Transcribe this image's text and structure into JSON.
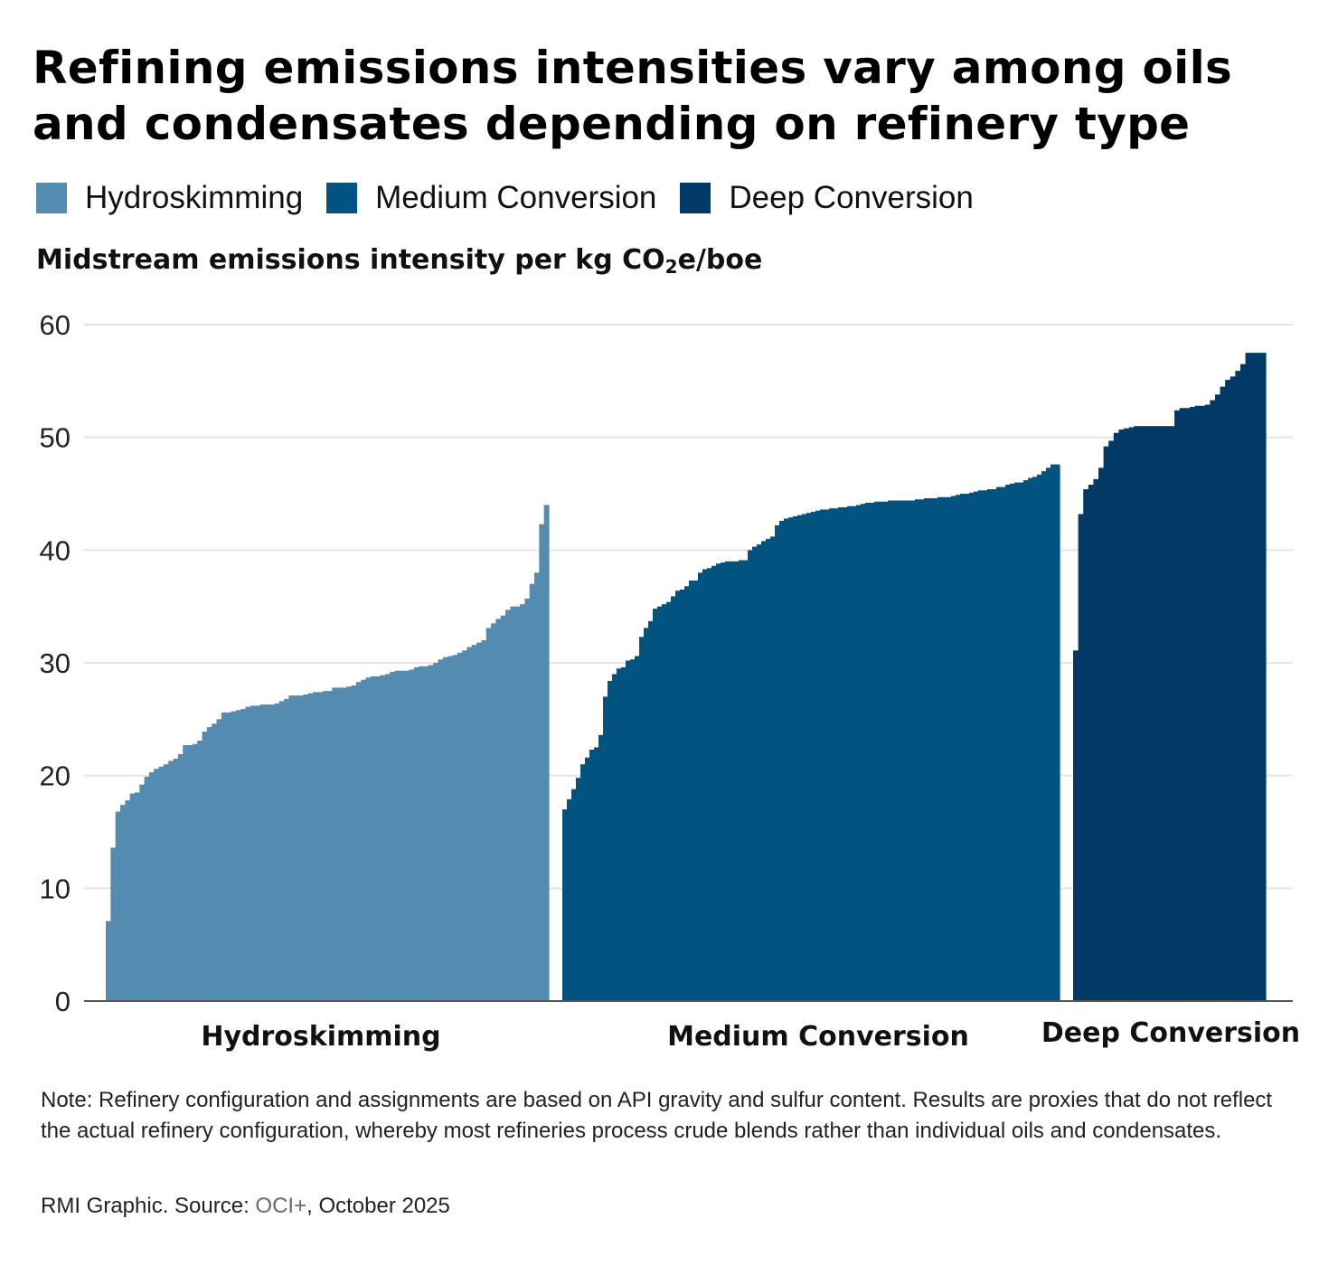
{
  "colors": {
    "hydroskimming": "#548cb1",
    "medium_conversion": "#02537f",
    "deep_conversion": "#013a67",
    "gridline": "#e4e4e4",
    "axis": "#555555"
  },
  "title": {
    "line1": "Refining emissions intensities vary among oils",
    "line2": "and condensates depending on refinery type"
  },
  "legend": [
    "Hydroskimming",
    "Medium Conversion",
    "Deep Conversion"
  ],
  "y_axis_title": {
    "main": "Midstream emissions intensity per kg CO",
    "subscript": "2",
    "suffix": "e/boe"
  },
  "note": "Note: Refinery configuration and assignments are based on API gravity and sulfur content. Results are proxies that do not reflect the actual refinery configuration, whereby most refineries process crude blends rather than individual oils and condensates.",
  "source": {
    "prefix": "RMI Graphic. Source: ",
    "link": "OCI+",
    "suffix": ", October 2025"
  },
  "chart_data": {
    "type": "bar",
    "title": "Refining emissions intensities vary among oils and condensates depending on refinery type",
    "ylabel": "Midstream emissions intensity per kg CO2e/boe",
    "ylim": [
      0,
      60
    ],
    "yticks": [
      0,
      10,
      20,
      30,
      40,
      50,
      60
    ],
    "grid": true,
    "legend_position": "top-left",
    "series": [
      {
        "name": "Hydroskimming",
        "x_label": "Hydroskimming",
        "values": [
          7.1,
          13.6,
          16.8,
          17.4,
          17.8,
          18.4,
          18.5,
          19.2,
          19.9,
          20.3,
          20.6,
          20.8,
          21.0,
          21.3,
          21.5,
          21.9,
          22.7,
          22.7,
          22.8,
          23.1,
          23.9,
          24.3,
          24.6,
          25.0,
          25.6,
          25.6,
          25.7,
          25.8,
          25.9,
          26.1,
          26.2,
          26.2,
          26.3,
          26.3,
          26.3,
          26.4,
          26.6,
          26.8,
          27.1,
          27.1,
          27.1,
          27.2,
          27.3,
          27.4,
          27.4,
          27.5,
          27.5,
          27.8,
          27.8,
          27.8,
          27.9,
          28.0,
          28.3,
          28.5,
          28.7,
          28.8,
          28.8,
          28.9,
          29.0,
          29.2,
          29.3,
          29.3,
          29.3,
          29.4,
          29.6,
          29.7,
          29.7,
          29.8,
          30.0,
          30.3,
          30.5,
          30.6,
          30.7,
          30.9,
          31.1,
          31.4,
          31.6,
          31.8,
          32.0,
          33.1,
          33.5,
          33.9,
          34.2,
          34.7,
          35.0,
          35.0,
          35.2,
          35.7,
          37.0,
          38.0,
          42.3,
          44.0
        ]
      },
      {
        "name": "Medium Conversion",
        "x_label": "Medium Conversion",
        "values": [
          17.0,
          17.9,
          18.8,
          19.8,
          21.0,
          21.6,
          22.3,
          22.5,
          23.6,
          27.0,
          28.4,
          29.0,
          29.5,
          29.6,
          30.2,
          30.3,
          30.6,
          32.3,
          33.1,
          33.7,
          34.8,
          35.0,
          35.2,
          35.4,
          35.9,
          36.4,
          36.5,
          36.8,
          37.3,
          37.3,
          38.0,
          38.3,
          38.4,
          38.6,
          38.8,
          38.9,
          39.0,
          39.0,
          39.0,
          39.1,
          39.1,
          40.0,
          40.3,
          40.5,
          40.8,
          41.0,
          41.2,
          42.2,
          42.6,
          42.8,
          42.9,
          43.0,
          43.1,
          43.2,
          43.3,
          43.4,
          43.5,
          43.6,
          43.6,
          43.7,
          43.7,
          43.8,
          43.8,
          43.9,
          43.9,
          44.0,
          44.1,
          44.2,
          44.2,
          44.3,
          44.3,
          44.3,
          44.4,
          44.4,
          44.4,
          44.4,
          44.4,
          44.4,
          44.5,
          44.5,
          44.6,
          44.6,
          44.6,
          44.7,
          44.7,
          44.7,
          44.8,
          44.9,
          45.0,
          45.0,
          45.1,
          45.2,
          45.3,
          45.3,
          45.4,
          45.4,
          45.6,
          45.6,
          45.8,
          45.9,
          46.0,
          46.0,
          46.2,
          46.4,
          46.5,
          46.7,
          47.0,
          47.3,
          47.6,
          47.6
        ]
      },
      {
        "name": "Deep Conversion",
        "x_label": "Deep Conversion",
        "values": [
          31.1,
          43.2,
          45.4,
          45.8,
          46.3,
          47.3,
          49.2,
          49.7,
          50.4,
          50.7,
          50.8,
          50.9,
          51.0,
          51.0,
          51.0,
          51.0,
          51.0,
          51.0,
          51.0,
          51.0,
          52.4,
          52.6,
          52.6,
          52.7,
          52.8,
          52.8,
          52.9,
          53.3,
          53.8,
          54.5,
          55.1,
          55.4,
          55.9,
          56.5,
          57.5,
          57.5,
          57.5,
          57.5
        ]
      }
    ]
  }
}
